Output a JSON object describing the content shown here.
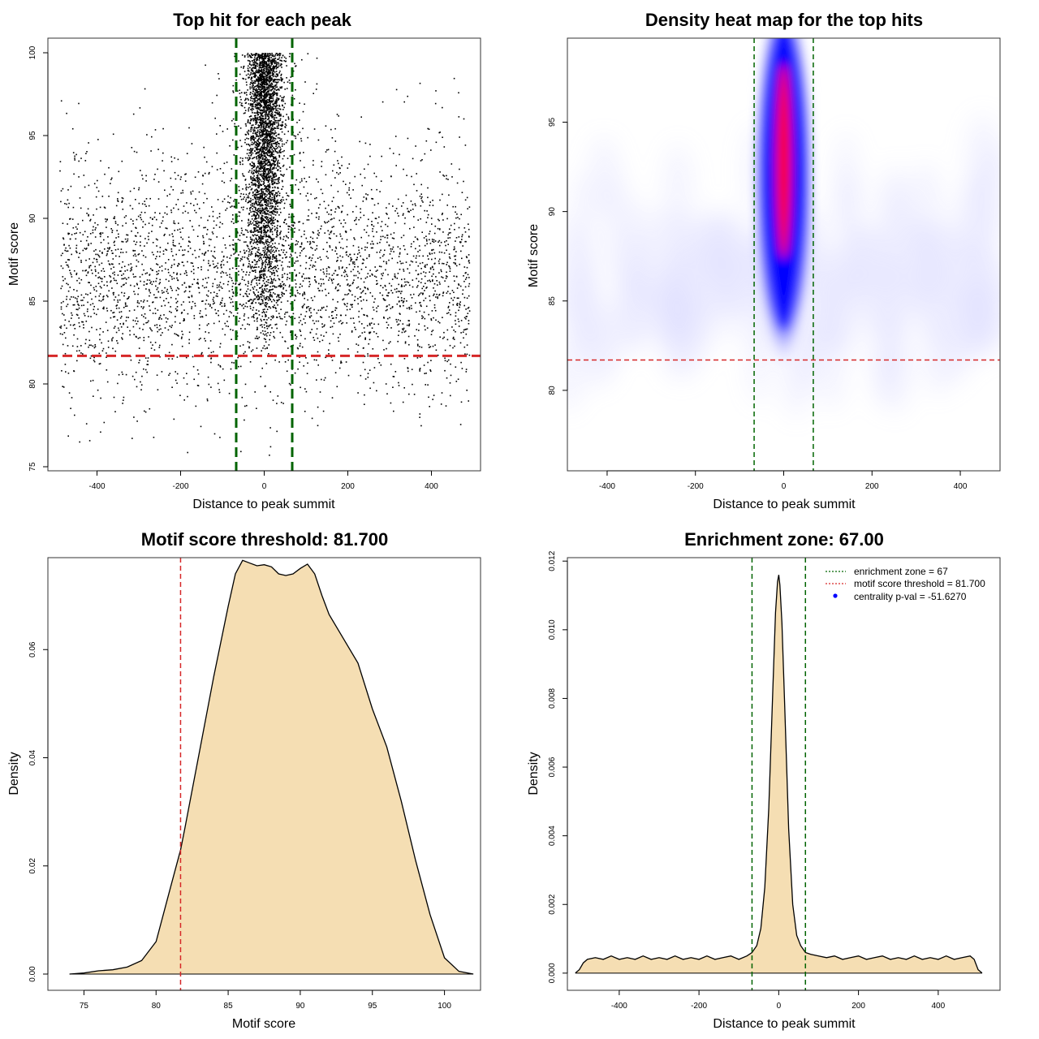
{
  "chart_data": [
    {
      "type": "scatter",
      "title": "Top hit for each peak",
      "xlabel": "Distance to peak summit",
      "ylabel": "Motif score",
      "xlim": [
        -500,
        500
      ],
      "ylim": [
        75,
        100
      ],
      "xticks": [
        -400,
        -200,
        0,
        200,
        400
      ],
      "yticks": [
        75,
        80,
        85,
        90,
        95,
        100
      ],
      "grid": false,
      "background_points": {
        "x_range": [
          -490,
          490
        ],
        "y_range": [
          75.5,
          98.5
        ],
        "approx_count": 3300,
        "mode_y": 86
      },
      "central_cluster": {
        "x_center": 0,
        "x_spread": 20,
        "y_range": [
          82,
          100
        ],
        "approx_count": 3500
      },
      "vlines": [
        -67,
        67
      ],
      "hline": 81.7,
      "colors": {
        "points": "#000000",
        "vlines": "#006400",
        "hline": "#d62728"
      }
    },
    {
      "type": "heatmap",
      "title": "Density heat map for the top hits",
      "xlabel": "Distance to peak summit",
      "ylabel": "Motif score",
      "xlim": [
        -490,
        490
      ],
      "ylim": [
        75.5,
        99.7
      ],
      "xticks": [
        -400,
        -200,
        0,
        200,
        400
      ],
      "yticks": [
        80,
        85,
        90,
        95
      ],
      "grid": false,
      "hot_spot": {
        "x": 0,
        "y": 92,
        "x_spread": 14,
        "y_spread": 5.5
      },
      "vlines": [
        -67,
        67
      ],
      "hline": 81.7,
      "colors": {
        "low": "#ffffff",
        "mid": "#0000ff",
        "high": "#ff0000",
        "vlines": "#006400",
        "hline": "#d62728"
      }
    },
    {
      "type": "area",
      "title": "Motif score threshold: 81.700",
      "xlabel": "Motif score",
      "ylabel": "Density",
      "xlim": [
        72.5,
        102.5
      ],
      "ylim": [
        -0.003,
        0.077
      ],
      "xticks": [
        75,
        80,
        85,
        90,
        95,
        100
      ],
      "yticks": [
        0.0,
        0.02,
        0.04,
        0.06
      ],
      "ytick_labels": [
        "0.00",
        "0.02",
        "0.04",
        "0.06"
      ],
      "grid": false,
      "x": [
        74,
        75,
        76,
        77,
        78,
        79,
        80,
        81,
        81.7,
        82,
        83,
        84,
        85,
        85.5,
        86,
        86.5,
        87,
        87.5,
        88,
        88.5,
        89,
        89.5,
        90,
        90.5,
        91,
        91.5,
        92,
        93,
        94,
        95,
        96,
        97,
        98,
        99,
        100,
        101,
        102
      ],
      "y": [
        0.0,
        0.0002,
        0.0006,
        0.0008,
        0.0013,
        0.0025,
        0.006,
        0.016,
        0.023,
        0.027,
        0.041,
        0.055,
        0.068,
        0.074,
        0.0765,
        0.076,
        0.0755,
        0.0757,
        0.0753,
        0.074,
        0.0737,
        0.074,
        0.075,
        0.0758,
        0.074,
        0.07,
        0.0665,
        0.062,
        0.0575,
        0.049,
        0.042,
        0.032,
        0.021,
        0.011,
        0.003,
        0.0005,
        0.0
      ],
      "vline": 81.7,
      "colors": {
        "fill": "#f5deb3",
        "line": "#000000",
        "vline": "#d62728"
      }
    },
    {
      "type": "area",
      "title": "Enrichment zone: 67.00",
      "xlabel": "Distance to peak summit",
      "ylabel": "Density",
      "xlim": [
        -530,
        555
      ],
      "ylim": [
        -0.0005,
        0.0121
      ],
      "xticks": [
        -400,
        -200,
        0,
        200,
        400
      ],
      "yticks": [
        0.0,
        0.002,
        0.004,
        0.006,
        0.008,
        0.01,
        0.012
      ],
      "ytick_labels": [
        "0.000",
        "0.002",
        "0.004",
        "0.006",
        "0.008",
        "0.010",
        "0.012"
      ],
      "grid": false,
      "x": [
        -510,
        -500,
        -490,
        -480,
        -460,
        -440,
        -420,
        -400,
        -380,
        -360,
        -340,
        -320,
        -300,
        -280,
        -260,
        -240,
        -220,
        -200,
        -180,
        -160,
        -140,
        -120,
        -100,
        -80,
        -67,
        -55,
        -45,
        -35,
        -25,
        -15,
        -8,
        -3,
        0,
        3,
        8,
        15,
        25,
        35,
        45,
        55,
        67,
        80,
        100,
        120,
        140,
        160,
        180,
        200,
        220,
        240,
        260,
        280,
        300,
        320,
        340,
        360,
        380,
        400,
        420,
        440,
        460,
        480,
        490,
        500,
        510
      ],
      "y": [
        0.0,
        0.0001,
        0.0003,
        0.0004,
        0.00045,
        0.0004,
        0.0005,
        0.0004,
        0.00045,
        0.0004,
        0.0005,
        0.0004,
        0.00045,
        0.0004,
        0.0005,
        0.0004,
        0.00045,
        0.0004,
        0.0005,
        0.0004,
        0.00045,
        0.0005,
        0.0004,
        0.0005,
        0.0006,
        0.0008,
        0.0013,
        0.0025,
        0.0048,
        0.0082,
        0.0105,
        0.0114,
        0.0116,
        0.0113,
        0.0102,
        0.0078,
        0.0042,
        0.002,
        0.0011,
        0.0008,
        0.0006,
        0.00055,
        0.0005,
        0.00045,
        0.0005,
        0.0004,
        0.00045,
        0.0005,
        0.0004,
        0.00045,
        0.0005,
        0.0004,
        0.00045,
        0.0004,
        0.0005,
        0.0004,
        0.00045,
        0.0004,
        0.0005,
        0.0004,
        0.00045,
        0.0005,
        0.0004,
        0.0001,
        0.0
      ],
      "vlines": [
        -67,
        67
      ],
      "legend": [
        {
          "label": "enrichment zone = 67",
          "color": "#006400",
          "symbol": "dotted-line"
        },
        {
          "label": "motif score threshold = 81.700",
          "color": "#d62728",
          "symbol": "dotted-line"
        },
        {
          "label": "centrality p-val = -51.6270",
          "color": "#0000ff",
          "symbol": "point"
        }
      ],
      "legend_position": "top-right",
      "colors": {
        "fill": "#f5deb3",
        "line": "#000000",
        "vlines": "#006400"
      }
    }
  ]
}
